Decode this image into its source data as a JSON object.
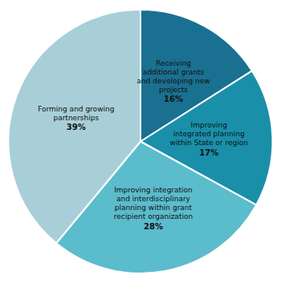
{
  "chart_data": {
    "type": "pie",
    "categories": [
      "Receiving\nadditional grants\nand developing new\nprojects",
      "Improving\nintegrated planning\nwithin State or region",
      "Improving integration\nand interdisciplinary\nplanning within grant\nrecipient organization",
      "Forming and growing\npartnerships"
    ],
    "values": [
      16,
      17,
      28,
      39
    ],
    "value_labels": [
      "16%",
      "17%",
      "28%",
      "39%"
    ],
    "colors": [
      "#1a7090",
      "#1a8faa",
      "#5bbccc",
      "#a8cfd8"
    ],
    "data_labels": true
  }
}
